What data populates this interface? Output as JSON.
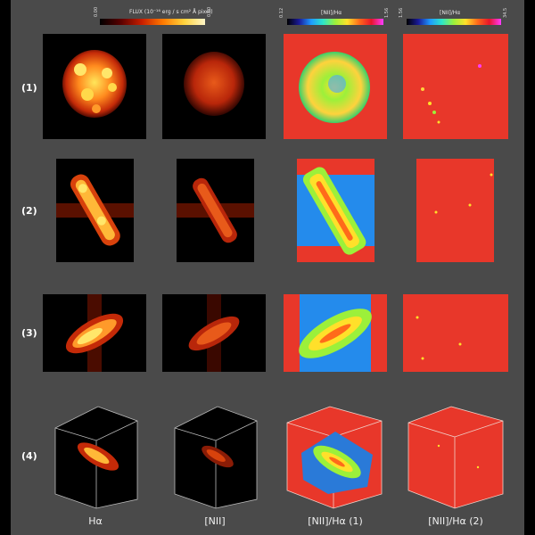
{
  "colorbars": {
    "flux": {
      "label": "FLUX",
      "unit_num": "10⁻¹⁶ erg",
      "unit_den": "s cm² Å pixel",
      "min": "0.00",
      "max": "0.00"
    },
    "ratio1": {
      "label": "[NII]/Hα",
      "min": "0.12",
      "max": "1.56"
    },
    "ratio2": {
      "label": "[NII]/Hα",
      "min": "1.56",
      "max": "34.5"
    }
  },
  "rows": [
    {
      "label": "(1)"
    },
    {
      "label": "(2)"
    },
    {
      "label": "(3)"
    },
    {
      "label": "(4)"
    }
  ],
  "columns": [
    {
      "label": "Hα"
    },
    {
      "label": "[NII]"
    },
    {
      "label": "[NII]/Hα (1)"
    },
    {
      "label": "[NII]/Hα (2)"
    }
  ],
  "colors": {
    "background": "#4a4a4a",
    "map_red": "#e8372a",
    "emission_orange": "#ff8a1e",
    "emission_yellow": "#ffe65a"
  }
}
